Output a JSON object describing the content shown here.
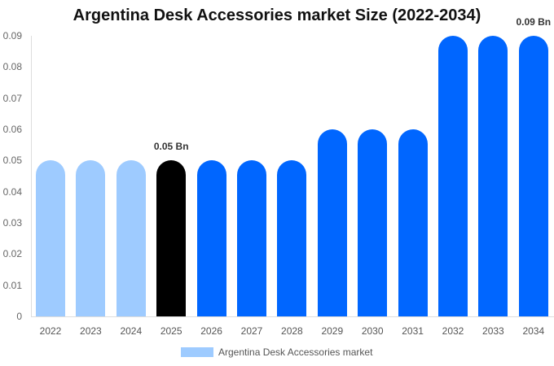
{
  "chart_data": {
    "type": "bar",
    "title": "Argentina Desk Accessories market Size (2022-2034)",
    "xlabel": "",
    "ylabel": "",
    "categories": [
      "2022",
      "2023",
      "2024",
      "2025",
      "2026",
      "2027",
      "2028",
      "2029",
      "2030",
      "2031",
      "2032",
      "2033",
      "2034"
    ],
    "series": [
      {
        "name": "Argentina Desk Accessories market",
        "values": [
          0.05,
          0.05,
          0.05,
          0.05,
          0.05,
          0.05,
          0.05,
          0.06,
          0.06,
          0.06,
          0.09,
          0.09,
          0.09
        ]
      }
    ],
    "bar_colors": [
      "#9ECBFF",
      "#9ECBFF",
      "#9ECBFF",
      "#000000",
      "#0066FF",
      "#0066FF",
      "#0066FF",
      "#0066FF",
      "#0066FF",
      "#0066FF",
      "#0066FF",
      "#0066FF",
      "#0066FF"
    ],
    "ylim": [
      0,
      0.09
    ],
    "yticks": [
      "0",
      "0.01",
      "0.02",
      "0.03",
      "0.04",
      "0.05",
      "0.06",
      "0.07",
      "0.08",
      "0.09"
    ],
    "annotations": [
      {
        "category": "2025",
        "text": "0.05 Bn"
      },
      {
        "category": "2034",
        "text": "0.09 Bn"
      }
    ],
    "legend": {
      "position": "bottom",
      "entries": [
        "Argentina Desk Accessories market"
      ]
    },
    "grid": false
  },
  "title": "Argentina Desk Accessories market Size (2022-2034)",
  "legend_label": "Argentina Desk Accessories market",
  "colors": {
    "historical": "#9ECBFF",
    "current": "#000000",
    "forecast": "#0066FF"
  }
}
